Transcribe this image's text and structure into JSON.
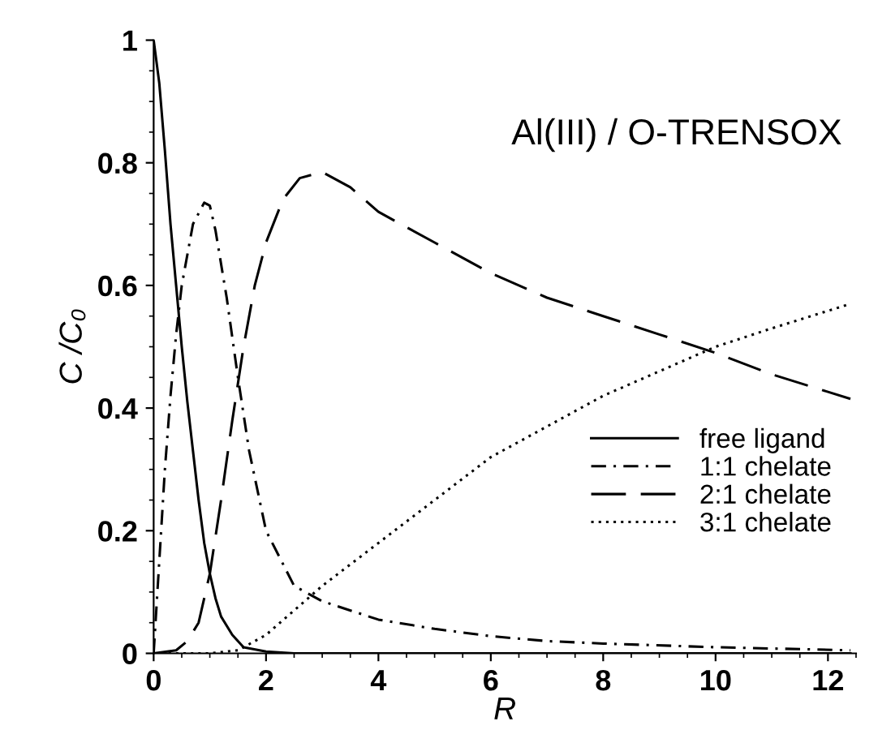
{
  "chart_data": {
    "type": "line",
    "xlabel": "R",
    "ylabel": "C /C₀",
    "annotations": [
      "Al(III) / O-TRENSOX"
    ],
    "xlim": [
      0,
      12.5
    ],
    "xticks": [
      0,
      2,
      4,
      6,
      8,
      10,
      12
    ],
    "ylim": [
      0,
      1
    ],
    "yticks": [
      0,
      0.2,
      0.4,
      0.6,
      0.8,
      1
    ],
    "grid": false,
    "legend": "lower right",
    "marker": "none",
    "series": [
      {
        "name": "free ligand",
        "color": "#000000",
        "line_style": "solid",
        "x": [
          0,
          0.1,
          0.2,
          0.3,
          0.4,
          0.5,
          0.6,
          0.7,
          0.8,
          0.9,
          1.0,
          1.1,
          1.2,
          1.4,
          1.6,
          2.0,
          2.5,
          12.4
        ],
        "values": [
          1,
          0.93,
          0.82,
          0.7,
          0.6,
          0.5,
          0.41,
          0.33,
          0.25,
          0.18,
          0.13,
          0.09,
          0.06,
          0.03,
          0.01,
          0.003,
          0,
          0
        ]
      },
      {
        "name": "1:1 chelate",
        "color": "#000000",
        "line_style": "dashdot",
        "x": [
          0,
          0.1,
          0.2,
          0.3,
          0.4,
          0.5,
          0.7,
          0.9,
          1.0,
          1.1,
          1.3,
          1.5,
          1.7,
          2.0,
          2.5,
          3.0,
          4,
          5,
          6,
          7,
          8,
          10,
          12.4
        ],
        "values": [
          0,
          0.15,
          0.3,
          0.42,
          0.52,
          0.6,
          0.7,
          0.735,
          0.73,
          0.69,
          0.58,
          0.45,
          0.33,
          0.2,
          0.11,
          0.085,
          0.055,
          0.04,
          0.028,
          0.02,
          0.016,
          0.01,
          0.005
        ]
      },
      {
        "name": "2:1 chelate",
        "color": "#000000",
        "line_style": "longdash",
        "x": [
          0,
          0.4,
          0.6,
          0.8,
          1.0,
          1.2,
          1.4,
          1.6,
          1.8,
          2.0,
          2.3,
          2.6,
          3.0,
          3.5,
          4,
          5,
          6,
          7,
          8,
          9,
          10,
          11,
          12.4
        ],
        "values": [
          0,
          0.005,
          0.02,
          0.05,
          0.13,
          0.25,
          0.38,
          0.5,
          0.6,
          0.67,
          0.74,
          0.775,
          0.785,
          0.76,
          0.72,
          0.67,
          0.62,
          0.58,
          0.55,
          0.52,
          0.49,
          0.455,
          0.415
        ]
      },
      {
        "name": "3:1 chelate",
        "color": "#000000",
        "line_style": "dotted",
        "x": [
          0,
          1.0,
          1.5,
          2,
          2.5,
          3,
          4,
          5,
          6,
          7,
          8,
          9,
          10,
          11,
          12.4
        ],
        "values": [
          0,
          0,
          0.005,
          0.03,
          0.07,
          0.11,
          0.18,
          0.25,
          0.32,
          0.37,
          0.42,
          0.46,
          0.5,
          0.53,
          0.57
        ]
      }
    ]
  }
}
